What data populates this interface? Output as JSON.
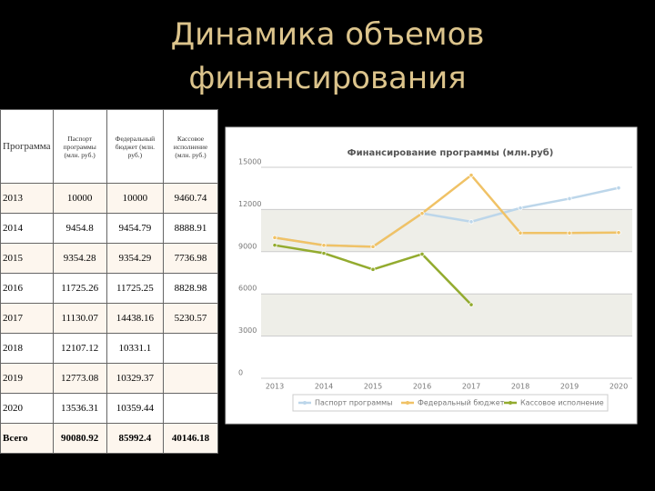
{
  "header": {
    "title": "Динамика объемов финансирования"
  },
  "table": {
    "columns": [
      "Программа",
      "Паспорт программы (млн. руб.)",
      "Федеральный бюджет (млн. руб.)",
      "Кассовое исполнение (млн. руб.)"
    ],
    "rows": [
      [
        "2013",
        "10000",
        "10000",
        "9460.74"
      ],
      [
        "2014",
        "9454.8",
        "9454.79",
        "8888.91"
      ],
      [
        "2015",
        "9354.28",
        "9354.29",
        "7736.98"
      ],
      [
        "2016",
        "11725.26",
        "11725.25",
        "8828.98"
      ],
      [
        "2017",
        "11130.07",
        "14438.16",
        "5230.57"
      ],
      [
        "2018",
        "12107.12",
        "10331.1"
      ],
      [
        "2019",
        "12773.08",
        "10329.37"
      ],
      [
        "2020",
        "13536.31",
        "10359.44"
      ],
      [
        "Всего",
        "90080.92",
        "85992.4",
        "40146.18"
      ]
    ]
  },
  "chart_data": {
    "type": "line",
    "title": "Финансирование программы (млн.руб)",
    "categories": [
      "2013",
      "2014",
      "2015",
      "2016",
      "2017",
      "2018",
      "2019",
      "2020"
    ],
    "ylim": [
      0,
      15000
    ],
    "yticks": [
      0,
      3000,
      6000,
      9000,
      12000,
      15000
    ],
    "legend": "bottom",
    "series": [
      {
        "name": "Паспорт программы",
        "color": "#bcd6ea",
        "values": [
          10000,
          9454.8,
          9354.28,
          11725.26,
          11130.07,
          12107.12,
          12773.08,
          13536.31
        ]
      },
      {
        "name": "Федеральный бюджет",
        "color": "#f0c266",
        "values": [
          10000,
          9454.79,
          9354.29,
          11725.25,
          14438.16,
          10331.1,
          10329.37,
          10359.44
        ]
      },
      {
        "name": "Кассовое исполнение",
        "color": "#93ab2f",
        "values": [
          9460.74,
          8888.91,
          7736.98,
          8828.98,
          5230.57,
          null,
          null,
          null
        ]
      }
    ]
  }
}
